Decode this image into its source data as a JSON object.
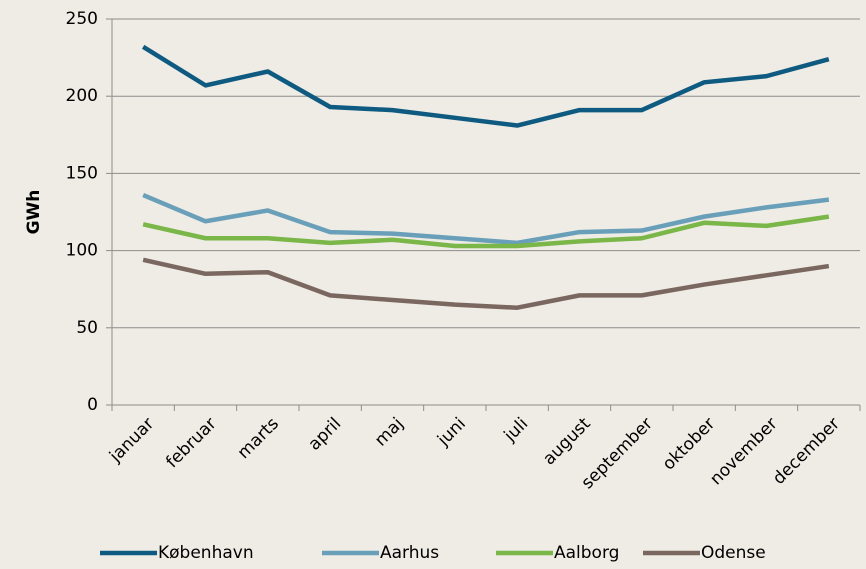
{
  "chart_data": {
    "type": "line",
    "y_label": "GWh",
    "categories": [
      "januar",
      "februar",
      "marts",
      "april",
      "maj",
      "juni",
      "juli",
      "august",
      "september",
      "oktober",
      "november",
      "december"
    ],
    "series": [
      {
        "name": "København",
        "color": "#0f5a80",
        "values": [
          232,
          207,
          216,
          193,
          191,
          186,
          181,
          191,
          191,
          209,
          213,
          224
        ]
      },
      {
        "name": "Aarhus",
        "color": "#6a9fba",
        "values": [
          136,
          119,
          126,
          112,
          111,
          108,
          105,
          112,
          113,
          122,
          128,
          133
        ]
      },
      {
        "name": "Aalborg",
        "color": "#7ab648",
        "values": [
          117,
          108,
          108,
          105,
          107,
          103,
          103,
          106,
          108,
          118,
          116,
          122
        ]
      },
      {
        "name": "Odense",
        "color": "#7a6760",
        "values": [
          94,
          85,
          86,
          71,
          68,
          65,
          63,
          71,
          71,
          78,
          84,
          90
        ]
      }
    ],
    "ylim": [
      0,
      250
    ],
    "yticks": [
      0,
      50,
      100,
      150,
      200,
      250
    ],
    "grid": true,
    "legend": "bottom"
  }
}
